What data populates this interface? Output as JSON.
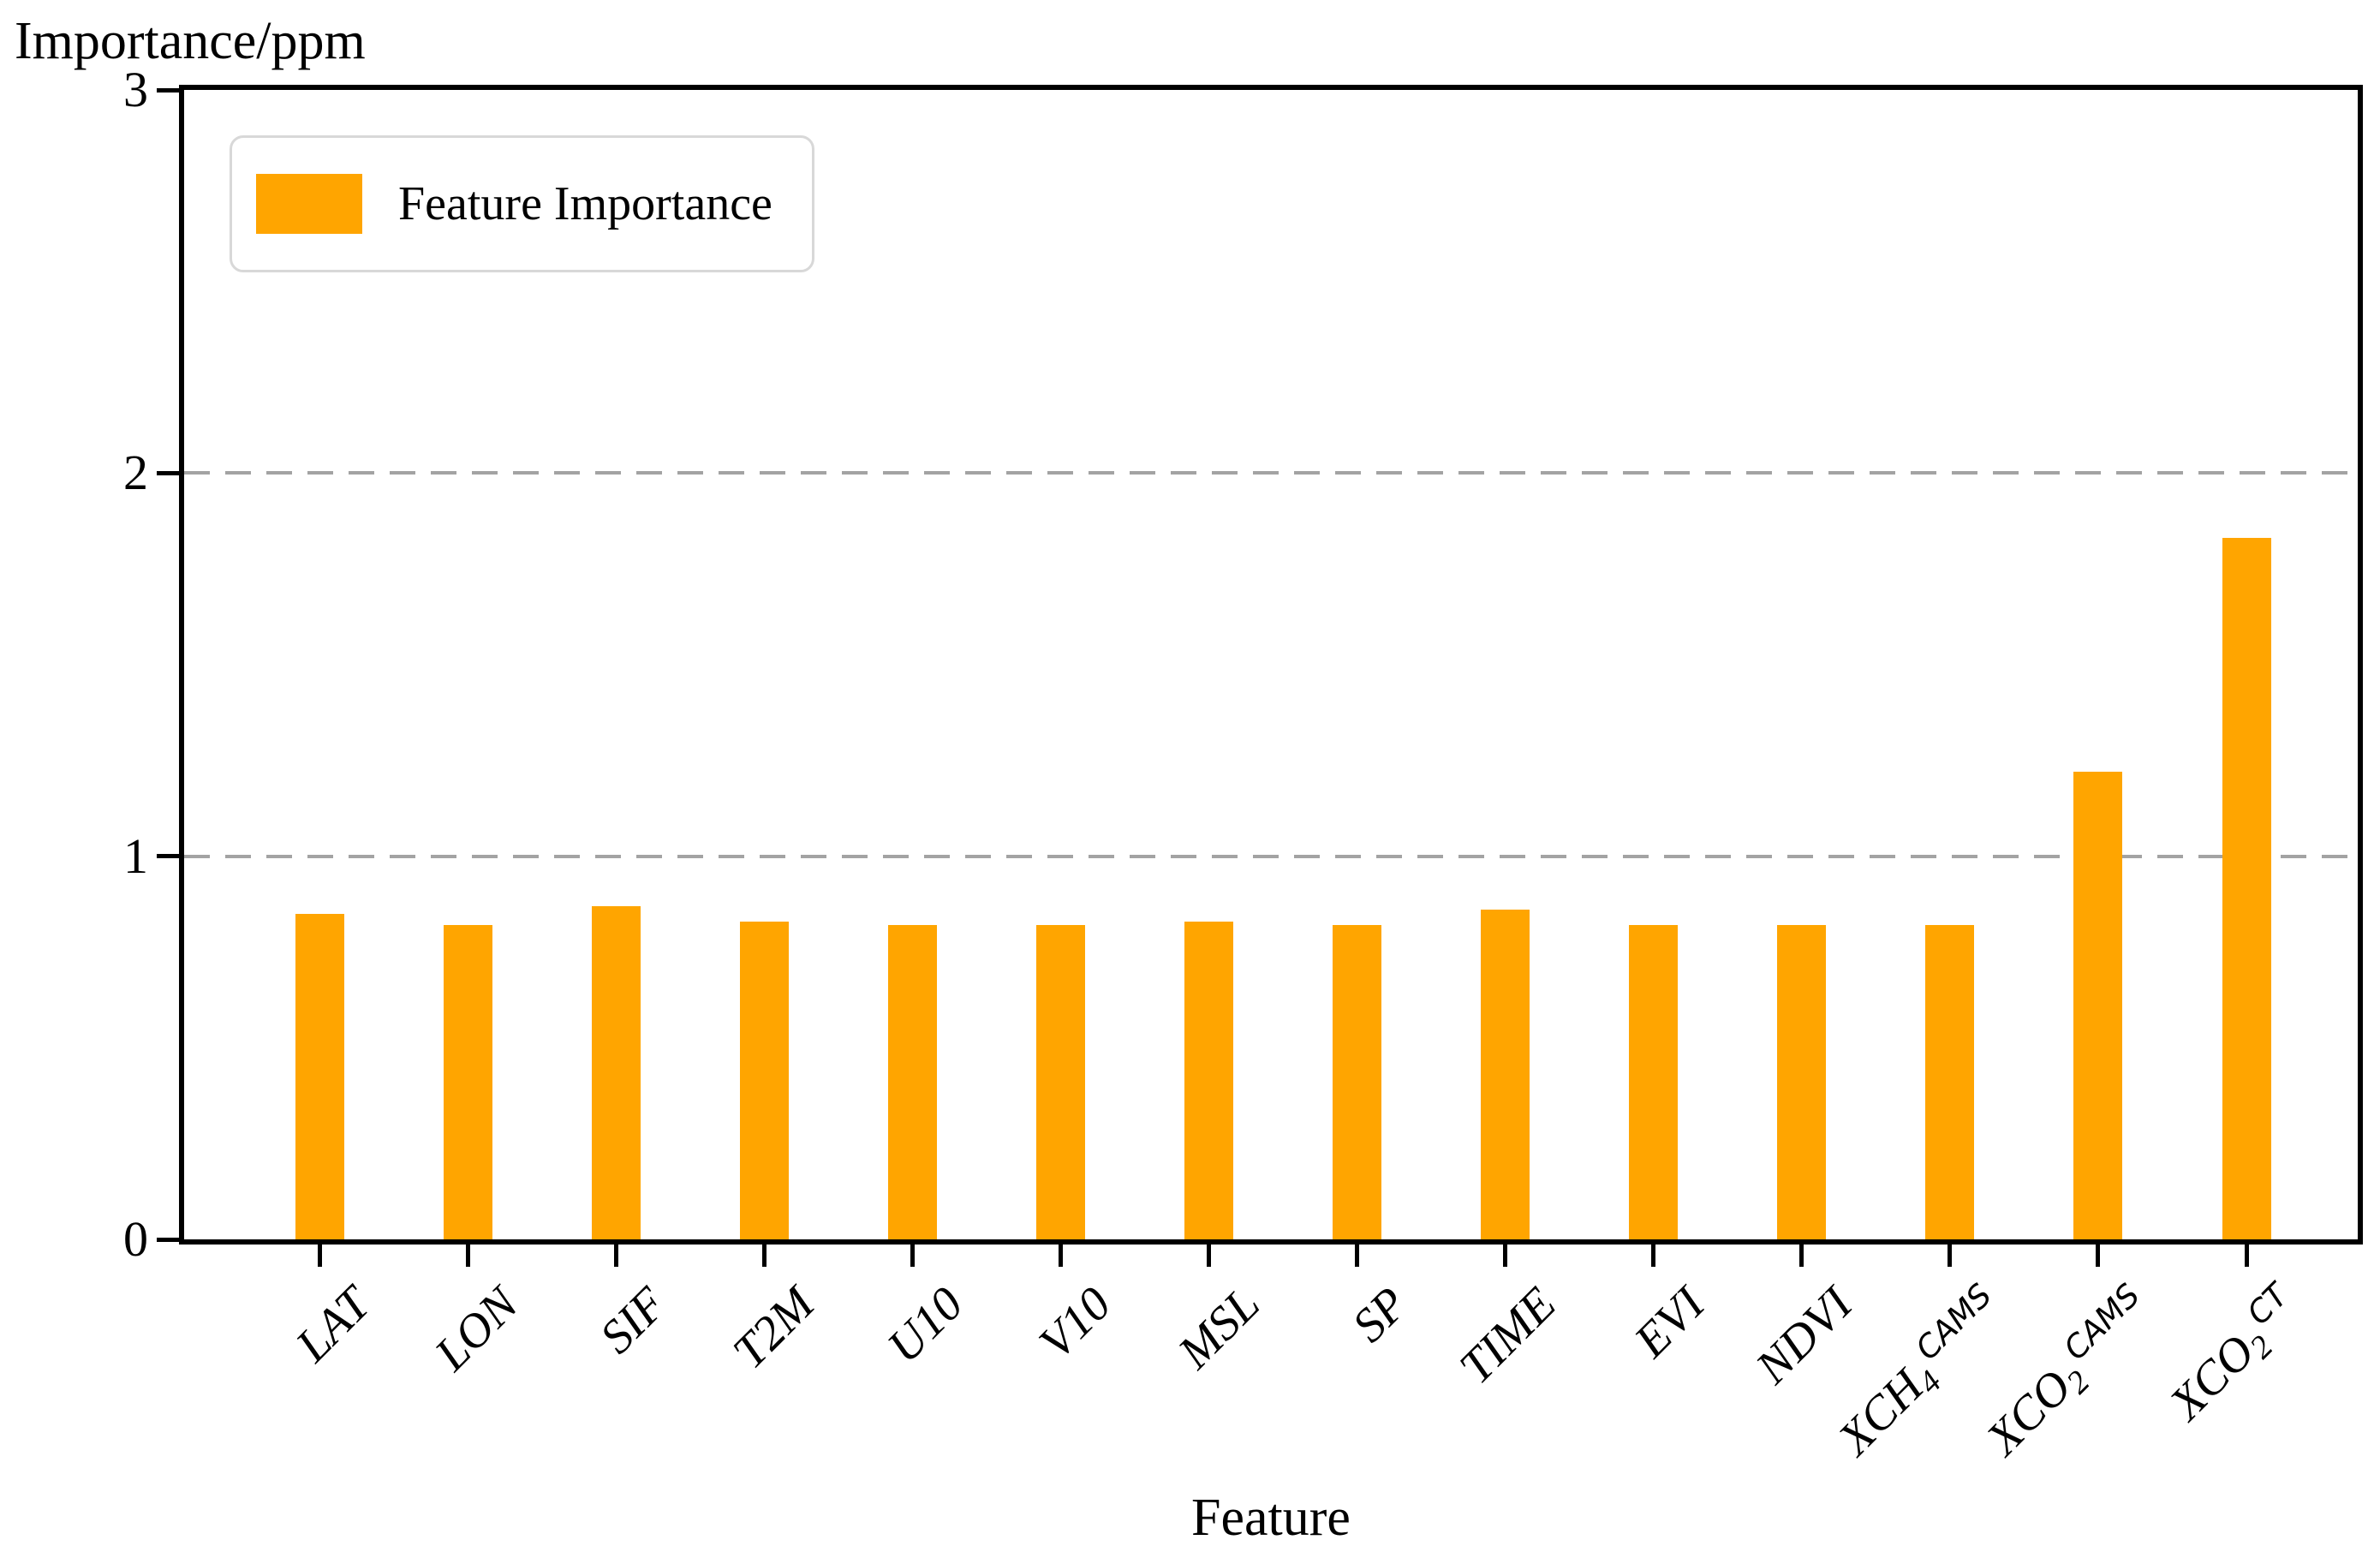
{
  "ylabel_title": "Importance/ppm",
  "xlabel": "Feature",
  "legend": {
    "label": "Feature Importance",
    "swatch_color": "#FFA500",
    "position": "upper left"
  },
  "colors": {
    "bar": "#FFA500",
    "grid": "#a3a3a3",
    "spine": "#000000"
  },
  "chart_data": {
    "type": "bar",
    "title": "",
    "xlabel": "Feature",
    "ylabel": "Importance/ppm",
    "ylim": [
      0,
      3
    ],
    "yticks": [
      0,
      1,
      2,
      3
    ],
    "gridlines_y": [
      1,
      2
    ],
    "grid_style": "dashed",
    "legend_position": "upper left",
    "bar_color": "#FFA500",
    "categories": [
      "LAT",
      "LON",
      "SIF",
      "T2M",
      "U10",
      "V10",
      "MSL",
      "SP",
      "TIME",
      "EVI",
      "NDVI",
      "XCH4 CAMS",
      "XCO2 CAMS",
      "XCO2 CT"
    ],
    "categories_rich": [
      {
        "t": "LAT"
      },
      {
        "t": "LON"
      },
      {
        "t": "SIF"
      },
      {
        "t": "T2M"
      },
      {
        "t": "U10"
      },
      {
        "t": "V10"
      },
      {
        "t": "MSL"
      },
      {
        "t": "SP"
      },
      {
        "t": "TIME"
      },
      {
        "t": "EVI"
      },
      {
        "t": "NDVI"
      },
      {
        "t": "XCH",
        "sub": "4",
        "sup": "CAMS"
      },
      {
        "t": "XCO",
        "sub": "2",
        "sup": "CAMS"
      },
      {
        "t": "XCO",
        "sub": "2",
        "sup": "CT"
      }
    ],
    "values": [
      0.85,
      0.82,
      0.87,
      0.83,
      0.82,
      0.82,
      0.83,
      0.82,
      0.86,
      0.82,
      0.82,
      0.82,
      1.22,
      1.83
    ],
    "series": [
      {
        "name": "Feature Importance",
        "values": [
          0.85,
          0.82,
          0.87,
          0.83,
          0.82,
          0.82,
          0.83,
          0.82,
          0.86,
          0.82,
          0.82,
          0.82,
          1.22,
          1.83
        ]
      }
    ]
  }
}
